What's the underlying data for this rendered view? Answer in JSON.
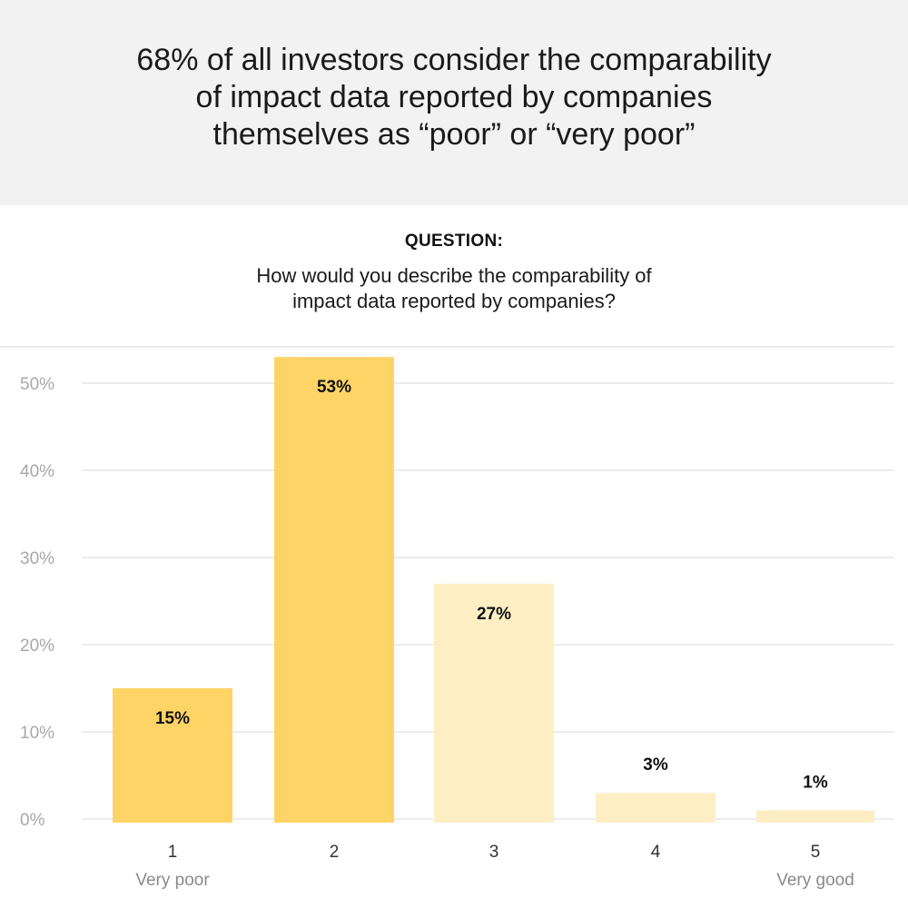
{
  "header": {
    "headline_lines": [
      "68% of all investors consider the comparability",
      "of impact data reported by companies",
      "themselves as “poor” or “very poor”"
    ]
  },
  "question": {
    "label": "QUESTION:",
    "text_lines": [
      "How would you describe the comparability of",
      "impact data reported by companies?"
    ]
  },
  "colors": {
    "header_bg": "#f2f2f2",
    "bar_strong": "#ffd466",
    "bar_light": "#fdeec4",
    "grid": "#e6e6e6"
  },
  "chart_data": {
    "type": "bar",
    "categories": [
      "1",
      "2",
      "3",
      "4",
      "5"
    ],
    "category_sublabels": [
      "Very poor",
      "",
      "",
      "",
      "Very good"
    ],
    "values": [
      15,
      53,
      27,
      3,
      1
    ],
    "value_labels": [
      "15%",
      "53%",
      "27%",
      "3%",
      "1%"
    ],
    "highlight": [
      true,
      true,
      false,
      false,
      false
    ],
    "ylim": [
      0,
      55
    ],
    "yticks": [
      0,
      10,
      20,
      30,
      40,
      50
    ],
    "ytick_labels": [
      "0%",
      "10%",
      "20%",
      "30%",
      "40%",
      "50%"
    ],
    "grid": true,
    "legend": "none"
  }
}
